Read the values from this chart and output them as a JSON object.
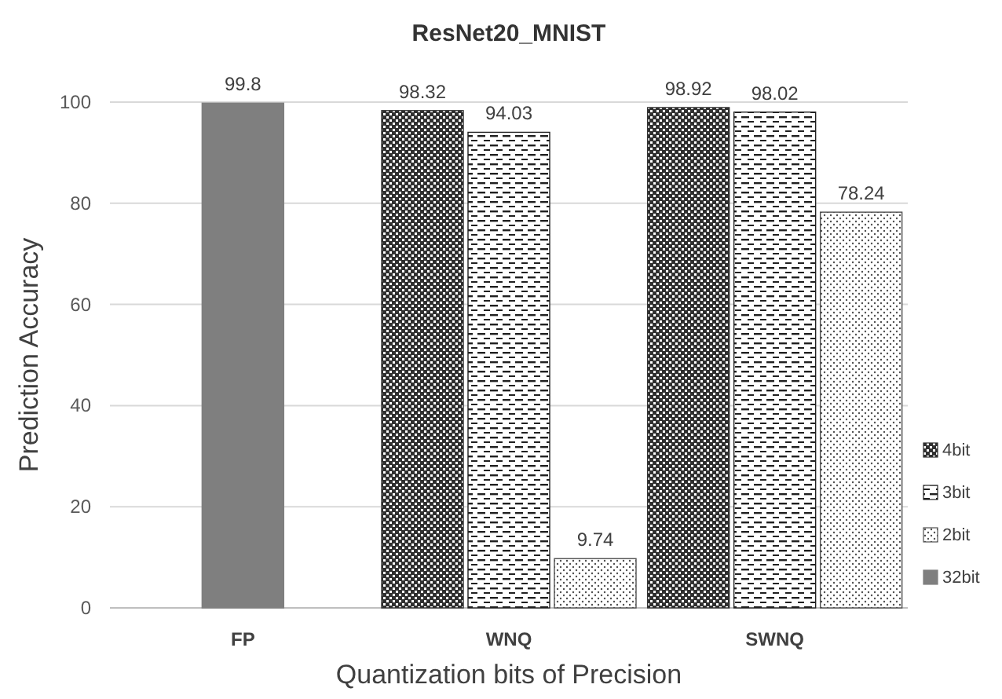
{
  "chart_data": {
    "type": "bar",
    "title": "ResNet20_MNIST",
    "xlabel": "Quantization bits of Precision",
    "ylabel": "Prediction Accuracy",
    "categories": [
      "FP",
      "WNQ",
      "SWNQ"
    ],
    "series": [
      {
        "name": "4bit",
        "color": "#303030",
        "values": [
          null,
          98.32,
          98.92
        ]
      },
      {
        "name": "3bit",
        "color": "#202020",
        "values": [
          null,
          94.03,
          98.02
        ]
      },
      {
        "name": "2bit",
        "color": "#505050",
        "values": [
          null,
          9.74,
          78.24
        ]
      },
      {
        "name": "32bit",
        "color": "#7f7f7f",
        "values": [
          99.8,
          null,
          null
        ]
      }
    ],
    "ylim": [
      0,
      100
    ],
    "yticks": [
      0,
      20,
      40,
      60,
      80,
      100
    ],
    "grid": "y",
    "legend": "right",
    "data_labels": true
  }
}
